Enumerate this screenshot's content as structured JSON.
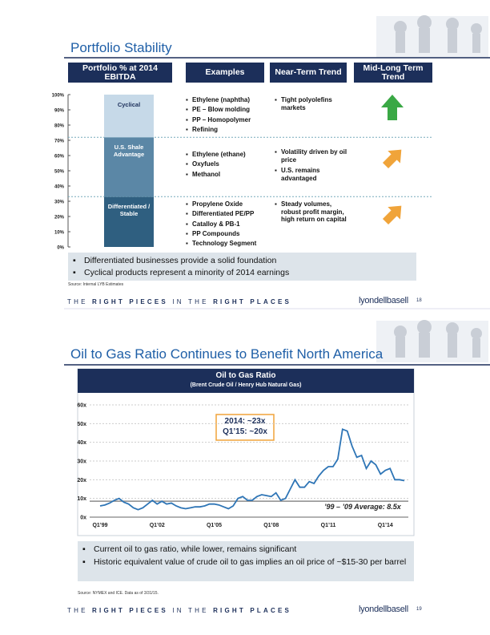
{
  "slides": [
    {
      "title": "Portfolio Stability",
      "headers": [
        "Portfolio % at 2014 EBITDA",
        "Examples",
        "Near-Term Trend",
        "Mid-Long Term Trend"
      ],
      "examples": [
        [
          "Ethylene (naphtha)",
          "PE – Blow molding",
          "PP – Homopolymer",
          "Refining"
        ],
        [
          "Ethylene (ethane)",
          "Oxyfuels",
          "Methanol"
        ],
        [
          "Propylene Oxide",
          "Differentiated PE/PP",
          "Catalloy & PB-1",
          "PP Compounds",
          "Technology Segment"
        ]
      ],
      "near_term": [
        [
          "Tight polyolefins markets"
        ],
        [
          "Volatility driven by oil price",
          "U.S. remains advantaged"
        ],
        [
          "Steady volumes, robust profit margin, high return on capital"
        ]
      ],
      "bullets": [
        "Differentiated businesses provide a solid foundation",
        "Cyclical products represent a minority of 2014 earnings"
      ],
      "source": "Source: Internal LYB Estimates",
      "footer": [
        "THE",
        "RIGHT PIECES",
        "IN THE",
        "RIGHT PLACES"
      ],
      "logo": "lyondellbasell",
      "page": "18"
    },
    {
      "title": "Oil to Gas Ratio Continues to Benefit North America",
      "bullets": [
        "Current oil to gas ratio, while lower, remains significant",
        "Historic equivalent value of crude oil to gas implies an oil price of ~$15-30 per barrel"
      ],
      "source": "Source: NYMEX and ICE.  Data as of 3/31/15.",
      "footer": [
        "THE",
        "RIGHT PIECES",
        "IN THE",
        "RIGHT PLACES"
      ],
      "logo": "lyondellbasell",
      "page": "19"
    }
  ],
  "chart_data": [
    {
      "type": "stacked-bar",
      "categories": [
        null
      ],
      "series": [
        {
          "name": "Differentiated / Stable",
          "color": "#2f5f80",
          "values": [
            33
          ]
        },
        {
          "name": "U.S. Shale Advantage",
          "color": "#5b87a6",
          "values": [
            39
          ]
        },
        {
          "name": "Cyclical",
          "color": "#c6d9e8",
          "values": [
            28
          ]
        }
      ],
      "ylim": [
        0,
        100
      ],
      "yticks": [
        {
          "value": 0,
          "label": "0%"
        },
        {
          "value": 10,
          "label": "10%"
        },
        {
          "value": 20,
          "label": "20%"
        },
        {
          "value": 30,
          "label": "30%"
        },
        {
          "value": 40,
          "label": "40%"
        },
        {
          "value": 50,
          "label": "50%"
        },
        {
          "value": 60,
          "label": "60%"
        },
        {
          "value": 70,
          "label": "70%"
        },
        {
          "value": 80,
          "label": "80%"
        },
        {
          "value": 90,
          "label": "90%"
        },
        {
          "value": 100,
          "label": "100%"
        }
      ]
    },
    {
      "type": "line",
      "title": "Oil to Gas Ratio",
      "subtitle": "(Brent Crude Oil / Henry Hub Natural Gas)",
      "categories": [
        "Q1’99",
        null,
        null,
        null,
        null,
        null,
        null,
        null,
        null,
        null,
        null,
        null,
        "Q1’02",
        null,
        null,
        null,
        null,
        null,
        null,
        null,
        null,
        null,
        null,
        null,
        "Q1’05",
        null,
        null,
        null,
        null,
        null,
        null,
        null,
        null,
        null,
        null,
        null,
        "Q1’08",
        null,
        null,
        null,
        null,
        null,
        null,
        null,
        null,
        null,
        null,
        null,
        "Q1’11",
        null,
        null,
        null,
        null,
        null,
        null,
        null,
        null,
        null,
        null,
        null,
        "Q1’14",
        null,
        null,
        null,
        null
      ],
      "series": [
        {
          "name": null,
          "color": "#2e75b6",
          "values": [
            6,
            6.5,
            7.5,
            9,
            10,
            8,
            7,
            5,
            4,
            5,
            7,
            9,
            7,
            8.5,
            7,
            7.5,
            6,
            5,
            4.5,
            5,
            5.5,
            5.5,
            6,
            7,
            7,
            6.5,
            5.5,
            4.5,
            6,
            10,
            11,
            9,
            9,
            11,
            12,
            11.5,
            11,
            13,
            9,
            10,
            15,
            20,
            16,
            16,
            19,
            18,
            22,
            25,
            27,
            27,
            31,
            47,
            46,
            38,
            32,
            33,
            26,
            30,
            28,
            23,
            25,
            26,
            20,
            20,
            19.5
          ]
        }
      ],
      "ylim": [
        0,
        60
      ],
      "yticks": [
        {
          "value": 0,
          "label": "0x"
        },
        {
          "value": 10,
          "label": "10x"
        },
        {
          "value": 20,
          "label": "20x"
        },
        {
          "value": 30,
          "label": "30x"
        },
        {
          "value": 40,
          "label": "40x"
        },
        {
          "value": 50,
          "label": "50x"
        },
        {
          "value": 60,
          "label": "60x"
        }
      ],
      "grid": true,
      "annotations": [
        "2014: ~23x",
        "Q1’15: ~20x"
      ],
      "reference_line": {
        "value": 8.5,
        "label": "’99 – ’09 Average: 8.5x",
        "color": "#8c8c8c"
      }
    }
  ]
}
